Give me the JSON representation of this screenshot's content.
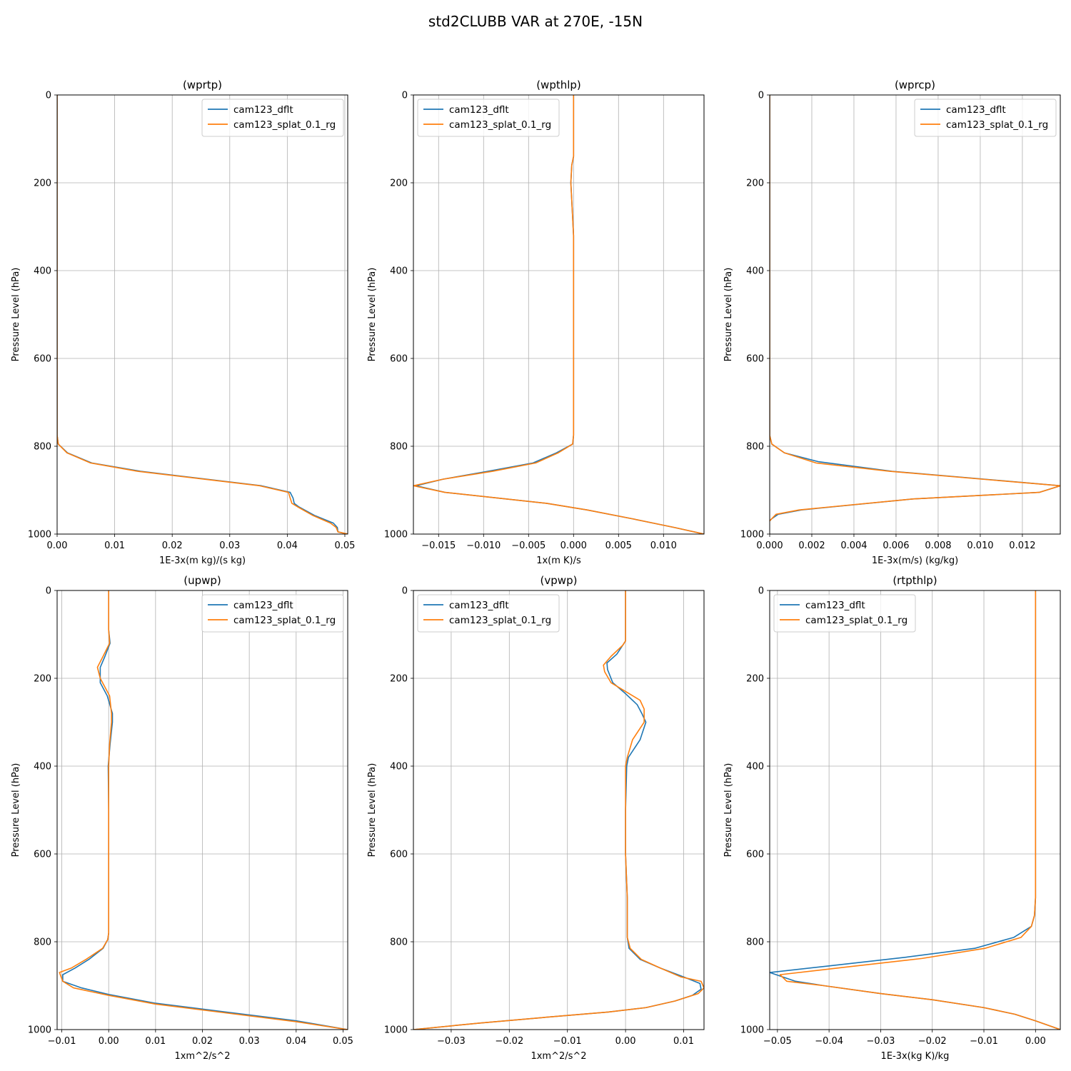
{
  "figure": {
    "title": "std2CLUBB VAR at 270E, -15N"
  },
  "legend_labels": [
    "cam123_dflt",
    "cam123_splat_0.1_rg"
  ],
  "colors": {
    "cam123_dflt": "#1f77b4",
    "cam123_splat_0.1_rg": "#ff7f0e",
    "grid": "#b0b0b0"
  },
  "chart_data": [
    {
      "type": "line",
      "title": "(wprtp)",
      "xlabel": "1E-3x(m kg)/(s kg)",
      "ylabel": "Pressure Level (hPa)",
      "xlim": [
        0.0,
        0.0505
      ],
      "ylim": [
        1000,
        0
      ],
      "xticks": [
        0.0,
        0.01,
        0.02,
        0.03,
        0.04,
        0.05
      ],
      "xtick_labels": [
        "0.00",
        "0.01",
        "0.02",
        "0.03",
        "0.04",
        "0.05"
      ],
      "yticks": [
        0,
        200,
        400,
        600,
        800,
        1000
      ],
      "ytick_labels": [
        "0",
        "200",
        "400",
        "600",
        "800",
        "1000"
      ],
      "grid": true,
      "legend_position": "top-right",
      "series": [
        {
          "name": "cam123_dflt",
          "x": [
            0,
            0,
            0,
            0.0002,
            0.0018,
            0.006,
            0.0145,
            0.0355,
            0.0405,
            0.041,
            0.0412,
            0.042,
            0.0448,
            0.048,
            0.0487,
            0.0488,
            0.0505
          ],
          "y": [
            0,
            600,
            775,
            795,
            815,
            838,
            857,
            890,
            905,
            918,
            930,
            938,
            958,
            975,
            985,
            995,
            1000
          ]
        },
        {
          "name": "cam123_splat_0.1_rg",
          "x": [
            0,
            0,
            0,
            0.0002,
            0.0017,
            0.0058,
            0.014,
            0.0352,
            0.0402,
            0.0405,
            0.0408,
            0.0418,
            0.0445,
            0.0475,
            0.0485,
            0.0488,
            0.0505
          ],
          "y": [
            0,
            600,
            775,
            795,
            815,
            838,
            857,
            890,
            905,
            918,
            930,
            938,
            958,
            975,
            985,
            995,
            1000
          ]
        }
      ]
    },
    {
      "type": "line",
      "title": "(wpthlp)",
      "xlabel": "1x(m K)/s",
      "ylabel": "Pressure Level (hPa)",
      "xlim": [
        -0.0178,
        0.0145
      ],
      "ylim": [
        1000,
        0
      ],
      "xticks": [
        -0.015,
        -0.01,
        -0.005,
        0.0,
        0.005,
        0.01
      ],
      "xtick_labels": [
        "−0.015",
        "−0.010",
        "−0.005",
        "0.000",
        "0.005",
        "0.010"
      ],
      "yticks": [
        0,
        200,
        400,
        600,
        800,
        1000
      ],
      "ytick_labels": [
        "0",
        "200",
        "400",
        "600",
        "800",
        "1000"
      ],
      "grid": true,
      "legend_position": "top-left",
      "series": [
        {
          "name": "cam123_dflt",
          "x": [
            0.0,
            0.0,
            -0.0002,
            -0.0003,
            -0.0002,
            0.0,
            0.0,
            0.0,
            0.0,
            0.0,
            -0.0001,
            -0.0019,
            -0.0045,
            -0.0095,
            -0.0145,
            -0.0175,
            -0.0143,
            -0.003,
            0.0015,
            0.0065,
            0.0112,
            0.0145
          ],
          "y": [
            0,
            140,
            160,
            200,
            240,
            320,
            400,
            600,
            700,
            775,
            795,
            815,
            838,
            857,
            875,
            890,
            905,
            930,
            945,
            965,
            985,
            1000
          ]
        },
        {
          "name": "cam123_splat_0.1_rg",
          "x": [
            0.0,
            0.0,
            -0.0002,
            -0.0003,
            -0.0002,
            0.0,
            0.0,
            0.0,
            0.0,
            0.0,
            -0.0001,
            -0.0017,
            -0.0042,
            -0.009,
            -0.0145,
            -0.0178,
            -0.0143,
            -0.003,
            0.0015,
            0.0065,
            0.0112,
            0.0145
          ],
          "y": [
            0,
            140,
            160,
            200,
            240,
            320,
            400,
            600,
            700,
            775,
            795,
            815,
            838,
            857,
            875,
            890,
            905,
            930,
            945,
            965,
            985,
            1000
          ]
        }
      ]
    },
    {
      "type": "line",
      "title": "(wprcp)",
      "xlabel": "1E-3x(m/s) (kg/kg)",
      "ylabel": "Pressure Level (hPa)",
      "xlim": [
        0.0,
        0.0138
      ],
      "ylim": [
        1000,
        0
      ],
      "xticks": [
        0.0,
        0.002,
        0.004,
        0.006,
        0.008,
        0.01,
        0.012
      ],
      "xtick_labels": [
        "0.000",
        "0.002",
        "0.004",
        "0.006",
        "0.008",
        "0.010",
        "0.012"
      ],
      "yticks": [
        0,
        200,
        400,
        600,
        800,
        1000
      ],
      "ytick_labels": [
        "0",
        "200",
        "400",
        "600",
        "800",
        "1000"
      ],
      "grid": true,
      "legend_position": "top-right",
      "series": [
        {
          "name": "cam123_dflt",
          "x": [
            0.0,
            0.0,
            0.0,
            0.0001,
            0.0007,
            0.0023,
            0.0058,
            0.0102,
            0.0138,
            0.0128,
            0.0068,
            0.0015,
            0.0004,
            0.0001,
            0.0
          ],
          "y": [
            0,
            400,
            775,
            795,
            815,
            835,
            857,
            875,
            890,
            905,
            920,
            945,
            955,
            965,
            970
          ]
        },
        {
          "name": "cam123_splat_0.1_rg",
          "x": [
            0.0,
            0.0,
            0.0,
            0.0001,
            0.0007,
            0.0022,
            0.0057,
            0.0101,
            0.0138,
            0.0128,
            0.0068,
            0.0014,
            0.0003,
            0.0001,
            0.0
          ],
          "y": [
            0,
            400,
            775,
            795,
            815,
            838,
            857,
            875,
            890,
            905,
            920,
            945,
            955,
            965,
            970
          ]
        }
      ]
    },
    {
      "type": "line",
      "title": "(upwp)",
      "xlabel": "1xm^2/s^2",
      "ylabel": "Pressure Level (hPa)",
      "xlim": [
        -0.011,
        0.051
      ],
      "ylim": [
        1000,
        0
      ],
      "xticks": [
        -0.01,
        0.0,
        0.01,
        0.02,
        0.03,
        0.04,
        0.05
      ],
      "xtick_labels": [
        "−0.01",
        "0.00",
        "0.01",
        "0.02",
        "0.03",
        "0.04",
        "0.05"
      ],
      "yticks": [
        0,
        200,
        400,
        600,
        800,
        1000
      ],
      "ytick_labels": [
        "0",
        "200",
        "400",
        "600",
        "800",
        "1000"
      ],
      "grid": true,
      "legend_position": "top-right",
      "series": [
        {
          "name": "cam123_dflt",
          "x": [
            0.0,
            0.0,
            0.0003,
            -0.0008,
            -0.0018,
            -0.0018,
            -0.0003,
            0.0008,
            0.0008,
            0.0003,
            -0.0001,
            0.0,
            0.0,
            0.0,
            -0.0002,
            -0.0012,
            -0.0042,
            -0.0072,
            -0.0098,
            -0.0098,
            -0.0058,
            0.0,
            0.01,
            0.025,
            0.04,
            0.051
          ],
          "y": [
            0,
            90,
            120,
            150,
            175,
            210,
            240,
            280,
            300,
            350,
            400,
            500,
            600,
            780,
            795,
            815,
            840,
            860,
            875,
            890,
            905,
            920,
            940,
            960,
            980,
            1000
          ]
        },
        {
          "name": "cam123_splat_0.1_rg",
          "x": [
            0.0,
            0.0,
            0.0002,
            -0.0012,
            -0.0024,
            -0.0018,
            0.0002,
            0.0006,
            0.0006,
            0.0002,
            0.0,
            0.0,
            0.0,
            0.0,
            -0.0002,
            -0.0013,
            -0.0048,
            -0.008,
            -0.0105,
            -0.0098,
            -0.0075,
            0.0,
            0.01,
            0.025,
            0.04,
            0.051
          ],
          "y": [
            0,
            90,
            120,
            150,
            175,
            200,
            240,
            280,
            300,
            350,
            400,
            500,
            600,
            780,
            795,
            815,
            840,
            860,
            870,
            890,
            905,
            922,
            942,
            962,
            982,
            1000
          ]
        }
      ]
    },
    {
      "type": "line",
      "title": "(vpwp)",
      "xlabel": "1xm^2/s^2",
      "ylabel": "Pressure Level (hPa)",
      "xlim": [
        -0.0365,
        0.0135
      ],
      "ylim": [
        1000,
        0
      ],
      "xticks": [
        -0.03,
        -0.02,
        -0.01,
        0.0,
        0.01
      ],
      "xtick_labels": [
        "−0.03",
        "−0.02",
        "−0.01",
        "0.00",
        "0.01"
      ],
      "yticks": [
        0,
        200,
        400,
        600,
        800,
        1000
      ],
      "ytick_labels": [
        "0",
        "200",
        "400",
        "600",
        "800",
        "1000"
      ],
      "grid": true,
      "legend_position": "top-left",
      "series": [
        {
          "name": "cam123_dflt",
          "x": [
            0.0,
            0.0,
            -0.0005,
            -0.0015,
            -0.0032,
            -0.0031,
            -0.0022,
            0.0,
            0.002,
            0.0028,
            0.0035,
            0.0025,
            0.0005,
            0.0002,
            0.0,
            0.0,
            0.0003,
            0.0003,
            0.0003,
            0.0006,
            0.0025,
            0.006,
            0.01,
            0.0128,
            0.013,
            0.0115,
            0.0085,
            0.0035,
            -0.003,
            -0.012,
            -0.025,
            -0.0365
          ],
          "y": [
            0,
            115,
            125,
            145,
            165,
            180,
            210,
            235,
            260,
            280,
            300,
            340,
            380,
            400,
            500,
            600,
            700,
            750,
            790,
            815,
            840,
            860,
            880,
            895,
            908,
            922,
            935,
            950,
            960,
            970,
            985,
            1000
          ]
        },
        {
          "name": "cam123_splat_0.1_rg",
          "x": [
            0.0,
            0.0,
            -0.0005,
            -0.0025,
            -0.0038,
            -0.0036,
            -0.0025,
            0.0,
            0.0025,
            0.0032,
            0.0032,
            0.0012,
            0.0003,
            0.0,
            0.0,
            0.0,
            0.0003,
            0.0003,
            0.0003,
            0.0008,
            0.0027,
            0.006,
            0.0095,
            0.013,
            0.0135,
            0.0125,
            0.0085,
            0.0035,
            -0.003,
            -0.012,
            -0.025,
            -0.0365
          ],
          "y": [
            0,
            115,
            125,
            150,
            170,
            185,
            210,
            230,
            250,
            270,
            300,
            340,
            380,
            400,
            500,
            600,
            700,
            750,
            790,
            815,
            840,
            860,
            880,
            890,
            905,
            918,
            935,
            950,
            960,
            970,
            985,
            1000
          ]
        }
      ]
    },
    {
      "type": "line",
      "title": "(rtpthlp)",
      "xlabel": "1E-3x(kg K)/kg",
      "ylabel": "Pressure Level (hPa)",
      "xlim": [
        -0.0515,
        0.0048
      ],
      "ylim": [
        1000,
        0
      ],
      "xticks": [
        -0.05,
        -0.04,
        -0.03,
        -0.02,
        -0.01,
        0.0
      ],
      "xtick_labels": [
        "−0.05",
        "−0.04",
        "−0.03",
        "−0.02",
        "−0.01",
        "0.00"
      ],
      "yticks": [
        0,
        200,
        400,
        600,
        800,
        1000
      ],
      "ytick_labels": [
        "0",
        "200",
        "400",
        "600",
        "800",
        "1000"
      ],
      "grid": true,
      "legend_position": "top-left",
      "series": [
        {
          "name": "cam123_dflt",
          "x": [
            0.0,
            0.0,
            -0.0002,
            -0.0008,
            -0.0042,
            -0.0118,
            -0.025,
            -0.04,
            -0.0515,
            -0.0465,
            -0.041,
            -0.03,
            -0.02,
            -0.01,
            -0.004,
            0.0,
            0.0048
          ],
          "y": [
            0,
            700,
            740,
            765,
            790,
            815,
            835,
            855,
            870,
            890,
            900,
            918,
            932,
            950,
            965,
            980,
            1000
          ]
        },
        {
          "name": "cam123_splat_0.1_rg",
          "x": [
            0.0,
            0.0,
            -0.0002,
            -0.0008,
            -0.0028,
            -0.0098,
            -0.022,
            -0.037,
            -0.0495,
            -0.0482,
            -0.041,
            -0.03,
            -0.02,
            -0.01,
            -0.004,
            0.0,
            0.0048
          ],
          "y": [
            0,
            700,
            740,
            765,
            790,
            815,
            838,
            858,
            875,
            890,
            900,
            918,
            932,
            950,
            965,
            980,
            1000
          ]
        }
      ]
    }
  ]
}
